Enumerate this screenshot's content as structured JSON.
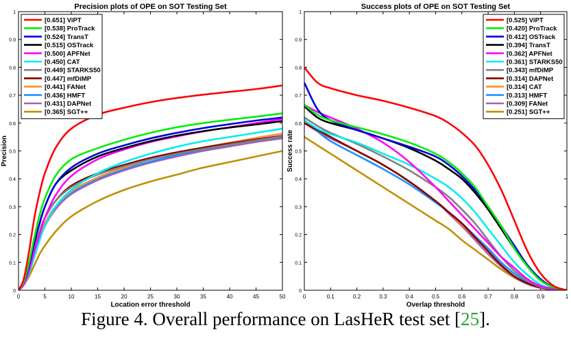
{
  "caption": {
    "prefix": "Figure 4. Overall performance on LasHeR test set [",
    "ref": "25",
    "suffix": "]."
  },
  "chart_data": [
    {
      "type": "line",
      "title": "Precision plots of OPE on SOT Testing Set",
      "xlabel": "Location error threshold",
      "ylabel": "Precision",
      "xlim": [
        0,
        50
      ],
      "ylim": [
        0,
        1
      ],
      "xticks": [
        0,
        5,
        10,
        15,
        20,
        25,
        30,
        35,
        40,
        45,
        50
      ],
      "yticks": [
        0,
        0.1,
        0.2,
        0.3,
        0.4,
        0.5,
        0.6,
        0.7,
        0.8,
        0.9,
        1
      ],
      "grid": false,
      "legend_position": "top-left",
      "x": [
        0,
        1,
        2,
        3,
        4,
        5,
        7,
        10,
        15,
        20,
        25,
        30,
        35,
        40,
        45,
        50
      ],
      "series": [
        {
          "name": "[0.651] ViPT",
          "color": "#ff0000",
          "values": [
            0,
            0.04,
            0.14,
            0.26,
            0.35,
            0.42,
            0.51,
            0.58,
            0.63,
            0.655,
            0.675,
            0.69,
            0.702,
            0.712,
            0.722,
            0.735
          ]
        },
        {
          "name": "[0.538] ProTrack",
          "color": "#00ee00",
          "values": [
            0,
            0.03,
            0.1,
            0.19,
            0.27,
            0.33,
            0.41,
            0.47,
            0.51,
            0.54,
            0.565,
            0.585,
            0.6,
            0.612,
            0.623,
            0.635
          ]
        },
        {
          "name": "[0.524] TransT",
          "color": "#0000dd",
          "values": [
            0,
            0.03,
            0.09,
            0.17,
            0.24,
            0.3,
            0.38,
            0.44,
            0.49,
            0.52,
            0.545,
            0.565,
            0.582,
            0.596,
            0.609,
            0.62
          ]
        },
        {
          "name": "[0.515] OSTrack",
          "color": "#000000",
          "values": [
            0,
            0.03,
            0.09,
            0.17,
            0.24,
            0.3,
            0.38,
            0.43,
            0.48,
            0.51,
            0.535,
            0.555,
            0.571,
            0.584,
            0.595,
            0.607
          ]
        },
        {
          "name": "[0.500] APFNet",
          "color": "#ff00ff",
          "values": [
            0,
            0.02,
            0.07,
            0.14,
            0.2,
            0.26,
            0.34,
            0.41,
            0.47,
            0.505,
            0.532,
            0.552,
            0.57,
            0.585,
            0.6,
            0.615
          ]
        },
        {
          "name": "[0.450] CAT",
          "color": "#00eeee",
          "values": [
            0,
            0.02,
            0.06,
            0.12,
            0.18,
            0.23,
            0.3,
            0.36,
            0.42,
            0.46,
            0.49,
            0.515,
            0.535,
            0.55,
            0.565,
            0.58
          ]
        },
        {
          "name": "[0.449] STARKS50",
          "color": "#808080",
          "values": [
            0,
            0.03,
            0.08,
            0.15,
            0.21,
            0.26,
            0.32,
            0.37,
            0.415,
            0.445,
            0.47,
            0.49,
            0.507,
            0.523,
            0.538,
            0.552
          ]
        },
        {
          "name": "[0.447] mfDiMP",
          "color": "#800000",
          "values": [
            0,
            0.03,
            0.08,
            0.15,
            0.21,
            0.26,
            0.32,
            0.375,
            0.42,
            0.45,
            0.475,
            0.495,
            0.512,
            0.527,
            0.541,
            0.554
          ]
        },
        {
          "name": "[0.441] FANet",
          "color": "#ff8c40",
          "values": [
            0,
            0.02,
            0.07,
            0.13,
            0.19,
            0.24,
            0.3,
            0.355,
            0.405,
            0.44,
            0.47,
            0.492,
            0.512,
            0.53,
            0.547,
            0.562
          ]
        },
        {
          "name": "[0.436] HMFT",
          "color": "#1e90ff",
          "values": [
            0,
            0.02,
            0.07,
            0.13,
            0.19,
            0.24,
            0.3,
            0.35,
            0.4,
            0.435,
            0.462,
            0.485,
            0.505,
            0.522,
            0.537,
            0.55
          ]
        },
        {
          "name": "[0.431] DAPNet",
          "color": "#b05cb0",
          "values": [
            0,
            0.02,
            0.06,
            0.12,
            0.18,
            0.23,
            0.29,
            0.345,
            0.395,
            0.43,
            0.458,
            0.48,
            0.5,
            0.516,
            0.532,
            0.545
          ]
        },
        {
          "name": "[0.365] SGT++",
          "color": "#c09000",
          "values": [
            0,
            0.02,
            0.05,
            0.09,
            0.13,
            0.16,
            0.21,
            0.265,
            0.32,
            0.36,
            0.39,
            0.415,
            0.44,
            0.46,
            0.48,
            0.5
          ]
        }
      ]
    },
    {
      "type": "line",
      "title": "Success plots of OPE on SOT Testing Set",
      "xlabel": "Overlap threshold",
      "ylabel": "Success rate",
      "xlim": [
        0,
        1
      ],
      "ylim": [
        0,
        1
      ],
      "xticks": [
        0,
        0.1,
        0.2,
        0.3,
        0.4,
        0.5,
        0.6,
        0.7,
        0.8,
        0.9,
        1
      ],
      "yticks": [
        0,
        0.1,
        0.2,
        0.3,
        0.4,
        0.5,
        0.6,
        0.7,
        0.8,
        0.9,
        1
      ],
      "grid": false,
      "legend_position": "top-right",
      "x": [
        0,
        0.05,
        0.1,
        0.2,
        0.3,
        0.4,
        0.5,
        0.55,
        0.6,
        0.65,
        0.7,
        0.75,
        0.8,
        0.85,
        0.9,
        0.95,
        1
      ],
      "series": [
        {
          "name": "[0.525] ViPT",
          "color": "#ff0000",
          "values": [
            0.8,
            0.745,
            0.725,
            0.7,
            0.68,
            0.655,
            0.625,
            0.6,
            0.565,
            0.52,
            0.45,
            0.36,
            0.25,
            0.14,
            0.06,
            0.015,
            0
          ]
        },
        {
          "name": "[0.420] ProTrack",
          "color": "#00ee00",
          "values": [
            0.665,
            0.63,
            0.61,
            0.585,
            0.56,
            0.53,
            0.49,
            0.46,
            0.42,
            0.37,
            0.3,
            0.23,
            0.15,
            0.085,
            0.035,
            0.01,
            0
          ]
        },
        {
          "name": "[0.412] OSTrack",
          "color": "#0000dd",
          "values": [
            0.745,
            0.65,
            0.61,
            0.575,
            0.545,
            0.515,
            0.48,
            0.45,
            0.41,
            0.36,
            0.3,
            0.23,
            0.16,
            0.09,
            0.04,
            0.01,
            0
          ]
        },
        {
          "name": "[0.394] TransT",
          "color": "#000000",
          "values": [
            0.66,
            0.62,
            0.6,
            0.575,
            0.545,
            0.51,
            0.465,
            0.435,
            0.4,
            0.35,
            0.29,
            0.22,
            0.15,
            0.085,
            0.035,
            0.01,
            0
          ]
        },
        {
          "name": "[0.362] APFNet",
          "color": "#ff00ff",
          "values": [
            0.665,
            0.64,
            0.62,
            0.58,
            0.53,
            0.46,
            0.37,
            0.32,
            0.27,
            0.22,
            0.17,
            0.12,
            0.08,
            0.04,
            0.015,
            0.005,
            0
          ]
        },
        {
          "name": "[0.361] STARKS50",
          "color": "#00eeee",
          "values": [
            0.61,
            0.58,
            0.56,
            0.53,
            0.49,
            0.45,
            0.4,
            0.37,
            0.33,
            0.28,
            0.22,
            0.16,
            0.1,
            0.055,
            0.02,
            0.005,
            0
          ]
        },
        {
          "name": "[0.343] mfDiMP",
          "color": "#808080",
          "values": [
            0.62,
            0.59,
            0.565,
            0.525,
            0.48,
            0.43,
            0.37,
            0.335,
            0.29,
            0.24,
            0.18,
            0.12,
            0.07,
            0.035,
            0.012,
            0.003,
            0
          ]
        },
        {
          "name": "[0.314] DAPNet",
          "color": "#800000",
          "values": [
            0.6,
            0.575,
            0.55,
            0.5,
            0.45,
            0.39,
            0.32,
            0.28,
            0.24,
            0.19,
            0.14,
            0.09,
            0.05,
            0.025,
            0.01,
            0.002,
            0
          ]
        },
        {
          "name": "[0.314] CAT",
          "color": "#ff8c40",
          "values": [
            0.61,
            0.575,
            0.55,
            0.5,
            0.45,
            0.39,
            0.32,
            0.28,
            0.235,
            0.19,
            0.14,
            0.09,
            0.05,
            0.025,
            0.01,
            0.002,
            0
          ]
        },
        {
          "name": "[0.313] HMFT",
          "color": "#1e90ff",
          "values": [
            0.61,
            0.57,
            0.535,
            0.485,
            0.435,
            0.38,
            0.315,
            0.28,
            0.24,
            0.195,
            0.15,
            0.1,
            0.06,
            0.03,
            0.012,
            0.003,
            0
          ]
        },
        {
          "name": "[0.309] FANet",
          "color": "#b05cb0",
          "values": [
            0.6,
            0.57,
            0.545,
            0.5,
            0.45,
            0.39,
            0.32,
            0.275,
            0.23,
            0.18,
            0.13,
            0.085,
            0.048,
            0.022,
            0.008,
            0.002,
            0
          ]
        },
        {
          "name": "[0.251] SGT++",
          "color": "#c09000",
          "values": [
            0.55,
            0.52,
            0.49,
            0.43,
            0.37,
            0.31,
            0.25,
            0.22,
            0.18,
            0.145,
            0.11,
            0.075,
            0.045,
            0.022,
            0.008,
            0.002,
            0
          ]
        }
      ]
    }
  ]
}
